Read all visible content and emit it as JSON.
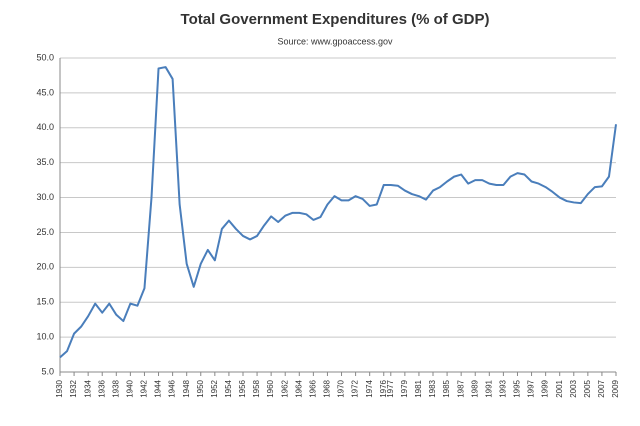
{
  "chart_data": {
    "type": "line",
    "title": "Total Government Expenditures (% of GDP)",
    "subtitle": "Source: www.gpoaccess.gov",
    "x": [
      1930,
      1931,
      1932,
      1933,
      1934,
      1935,
      1936,
      1937,
      1938,
      1939,
      1940,
      1941,
      1942,
      1943,
      1944,
      1945,
      1946,
      1947,
      1948,
      1949,
      1950,
      1951,
      1952,
      1953,
      1954,
      1955,
      1956,
      1957,
      1958,
      1959,
      1960,
      1961,
      1962,
      1963,
      1964,
      1965,
      1966,
      1967,
      1968,
      1969,
      1970,
      1971,
      1972,
      1973,
      1974,
      1975,
      1976,
      1977,
      1978,
      1979,
      1980,
      1981,
      1982,
      1983,
      1984,
      1985,
      1986,
      1987,
      1988,
      1989,
      1990,
      1991,
      1992,
      1993,
      1994,
      1995,
      1996,
      1997,
      1998,
      1999,
      2000,
      2001,
      2002,
      2003,
      2004,
      2005,
      2006,
      2007,
      2008,
      2009
    ],
    "values": [
      7.1,
      8.0,
      10.5,
      11.5,
      13.0,
      14.8,
      13.5,
      14.8,
      13.2,
      12.3,
      14.8,
      14.5,
      17.0,
      30.0,
      48.5,
      48.7,
      47.0,
      29.0,
      20.5,
      17.2,
      20.5,
      22.5,
      21.0,
      25.5,
      26.7,
      25.5,
      24.5,
      24.0,
      24.5,
      26.0,
      27.3,
      26.5,
      27.4,
      27.8,
      27.8,
      27.6,
      26.8,
      27.2,
      29.0,
      30.2,
      29.6,
      29.6,
      30.2,
      29.8,
      28.8,
      29.0,
      31.8,
      31.8,
      31.7,
      31.0,
      30.5,
      30.2,
      29.7,
      31.0,
      31.5,
      32.3,
      33.0,
      33.3,
      32.0,
      32.5,
      32.5,
      32.0,
      31.8,
      31.8,
      33.0,
      33.5,
      33.3,
      32.3,
      32.0,
      31.5,
      30.8,
      30.0,
      29.5,
      29.3,
      29.2,
      30.5,
      31.5,
      31.6,
      33.0,
      40.5
    ],
    "color": "#4a7ebb",
    "xlim": [
      1930,
      2009
    ],
    "xticks": [
      1930,
      1932,
      1934,
      1936,
      1938,
      1940,
      1942,
      1944,
      1946,
      1948,
      1950,
      1952,
      1954,
      1956,
      1958,
      1960,
      1962,
      1964,
      1966,
      1968,
      1970,
      1972,
      1974,
      1976,
      1977,
      1979,
      1981,
      1983,
      1985,
      1987,
      1989,
      1991,
      1993,
      1995,
      1997,
      1999,
      2001,
      2003,
      2005,
      2007,
      2009
    ],
    "ylim": [
      5,
      50
    ],
    "yticks": [
      {
        "value": 5,
        "label": "5.0"
      },
      {
        "value": 10,
        "label": "10.0"
      },
      {
        "value": 15,
        "label": "15.0"
      },
      {
        "value": 20,
        "label": "20.0"
      },
      {
        "value": 25,
        "label": "25.0"
      },
      {
        "value": 30,
        "label": "30.0"
      },
      {
        "value": 35,
        "label": "35.0"
      },
      {
        "value": 40,
        "label": "40.0"
      },
      {
        "value": 45,
        "label": "45.0"
      },
      {
        "value": 50,
        "label": "50.0"
      }
    ],
    "grid": true
  }
}
